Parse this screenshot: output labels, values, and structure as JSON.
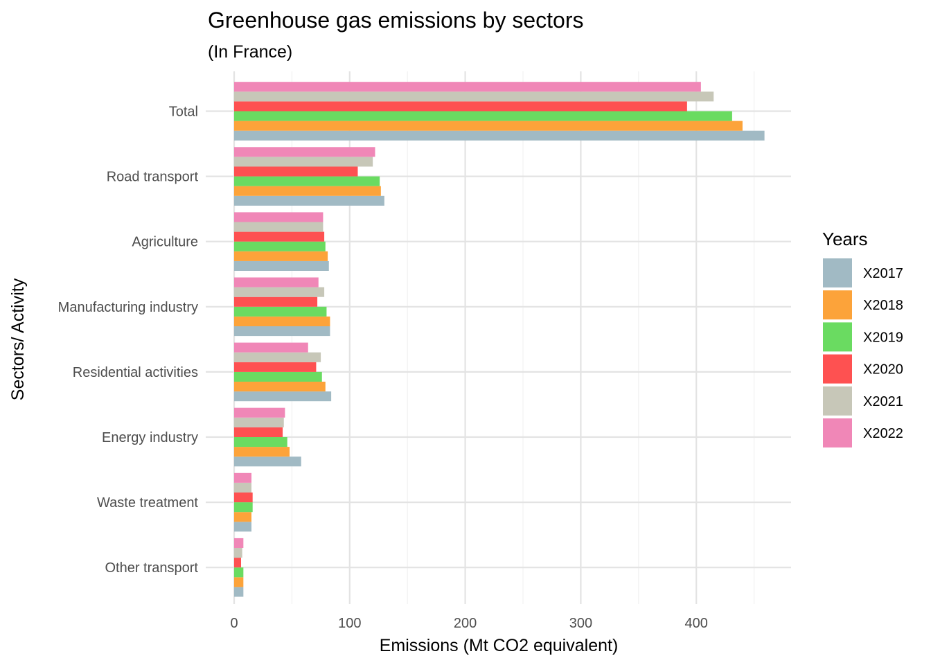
{
  "chart_data": {
    "type": "bar",
    "orientation": "horizontal",
    "title": "Greenhouse gas emissions by sectors",
    "subtitle": "(In France)",
    "xlabel": "Emissions (Mt CO2 equivalent)",
    "ylabel": "Sectors/ Activity",
    "xlim": [
      0,
      480
    ],
    "x_ticks": [
      0,
      100,
      200,
      300,
      400
    ],
    "grid": true,
    "legend": {
      "title": "Years",
      "position": "right"
    },
    "categories": [
      "Total",
      "Road transport",
      "Agriculture",
      "Manufacturing industry",
      "Residential activities",
      "Energy industry",
      "Waste treatment",
      "Other transport"
    ],
    "series": [
      {
        "name": "X2017",
        "color": "#A1BAC4",
        "values": [
          459,
          130,
          82,
          83,
          84,
          58,
          15,
          8
        ]
      },
      {
        "name": "X2018",
        "color": "#FCA33A",
        "values": [
          440,
          127,
          81,
          83,
          79,
          48,
          15,
          8
        ]
      },
      {
        "name": "X2019",
        "color": "#6ADB61",
        "values": [
          431,
          126,
          79,
          80,
          76,
          46,
          16,
          8
        ]
      },
      {
        "name": "X2020",
        "color": "#FE5151",
        "values": [
          392,
          107,
          78,
          72,
          71,
          42,
          16,
          6
        ]
      },
      {
        "name": "X2021",
        "color": "#C7C7B8",
        "values": [
          415,
          120,
          77,
          78,
          75,
          43,
          15,
          7
        ]
      },
      {
        "name": "X2022",
        "color": "#F087B7",
        "values": [
          404,
          122,
          77,
          73,
          64,
          44,
          15,
          8
        ]
      }
    ]
  }
}
